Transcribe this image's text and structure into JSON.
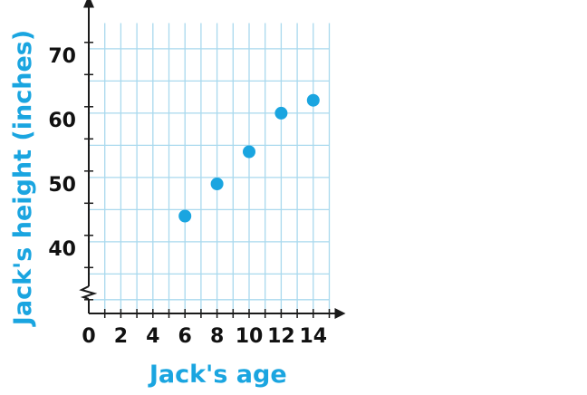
{
  "chart_data": {
    "type": "scatter",
    "title": "",
    "xlabel": "Jack's age",
    "ylabel": "Jack's height (inches)",
    "x": [
      6,
      8,
      10,
      12,
      14
    ],
    "y": [
      45,
      50,
      55,
      61,
      63
    ],
    "xlim": [
      0,
      15
    ],
    "ylim_visible": [
      31,
      75
    ],
    "y_axis_break": true,
    "x_ticks": [
      0,
      2,
      4,
      6,
      8,
      10,
      12,
      14
    ],
    "x_tick_labels": [
      "0",
      "2",
      "4",
      "6",
      "8",
      "10",
      "12",
      "14"
    ],
    "y_ticks": [
      40,
      50,
      60,
      70
    ],
    "y_tick_labels": [
      "40",
      "50",
      "60",
      "70"
    ],
    "grid": true,
    "colors": {
      "grid": "#a9d9ee",
      "points": "#1aa5e0",
      "axis_title": "#1aa5e0",
      "axes": "#1a1a1a"
    }
  }
}
